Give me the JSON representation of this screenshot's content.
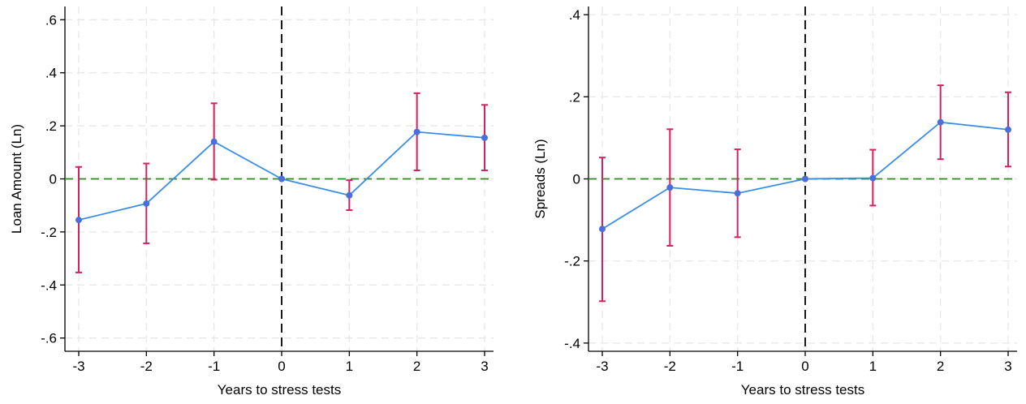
{
  "chart_data": [
    {
      "type": "line",
      "title": "",
      "xlabel": "Years to stress tests",
      "ylabel": "Loan Amount (Ln)",
      "x": [
        -3,
        -2,
        -1,
        0,
        1,
        2,
        3
      ],
      "xticks": [
        "-3",
        "-2",
        "-1",
        "0",
        "1",
        "2",
        "3"
      ],
      "ylim": [
        -0.65,
        0.65
      ],
      "yticks": [
        -0.6,
        -0.4,
        -0.2,
        0,
        0.2,
        0.4,
        0.6
      ],
      "ytick_labels": [
        "-.6",
        "-.4",
        "-.2",
        "0",
        ".2",
        ".4",
        ".6"
      ],
      "grid": true,
      "reference_lines": {
        "vertical_x": 0,
        "horizontal_y": 0
      },
      "series": [
        {
          "values": [
            -0.155,
            -0.093,
            0.14,
            0.0,
            -0.062,
            0.177,
            0.155
          ],
          "ci_low": [
            -0.353,
            -0.243,
            -0.003,
            0.0,
            -0.118,
            0.032,
            0.032
          ],
          "ci_high": [
            0.045,
            0.058,
            0.285,
            0.0,
            -0.005,
            0.323,
            0.279
          ]
        }
      ]
    },
    {
      "type": "line",
      "title": "",
      "xlabel": "Years to stress tests",
      "ylabel": "Spreads (Ln)",
      "x": [
        -3,
        -2,
        -1,
        0,
        1,
        2,
        3
      ],
      "xticks": [
        "-3",
        "-2",
        "-1",
        "0",
        "1",
        "2",
        "3"
      ],
      "ylim": [
        -0.42,
        0.42
      ],
      "yticks": [
        -0.4,
        -0.2,
        0,
        0.2,
        0.4
      ],
      "ytick_labels": [
        "-.4",
        "-.2",
        "0",
        ".2",
        ".4"
      ],
      "grid": true,
      "reference_lines": {
        "vertical_x": 0,
        "horizontal_y": 0
      },
      "series": [
        {
          "values": [
            -0.122,
            -0.021,
            -0.035,
            0.0,
            0.002,
            0.138,
            0.12
          ],
          "ci_low": [
            -0.298,
            -0.163,
            -0.142,
            0.0,
            -0.065,
            0.048,
            0.03
          ],
          "ci_high": [
            0.052,
            0.121,
            0.072,
            0.0,
            0.071,
            0.228,
            0.211
          ]
        }
      ]
    }
  ],
  "colors": {
    "line": "#3b8ee8",
    "point": "#4a6fd8",
    "ci": "#d6205f",
    "zero_line": "#2e8b22",
    "vline": "#000000",
    "grid": "#e6e6e6",
    "axis": "#000000"
  }
}
